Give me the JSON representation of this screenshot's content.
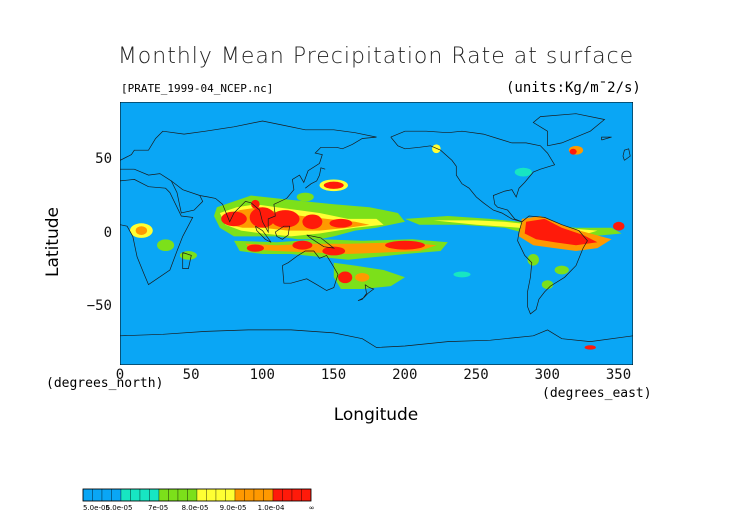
{
  "title": "Monthly Mean Precipitation Rate at surface",
  "file_label": "[PRATE_1999-04_NCEP.nc]",
  "units_label": "(units:Kg/m¯2/s)",
  "axes": {
    "x": {
      "label": "Longitude",
      "units": "(degrees_east)",
      "ticks": [
        "0",
        "50",
        "100",
        "150",
        "200",
        "250",
        "300",
        "350"
      ],
      "range": [
        0,
        360
      ]
    },
    "y": {
      "label": "Latitude",
      "units": "(degrees_north)",
      "ticks": [
        "50",
        "0",
        "−50"
      ],
      "range": [
        -90,
        90
      ]
    }
  },
  "colorbar": {
    "labels": [
      "5.0e-05",
      "6.0e-05",
      "7e-05",
      "8.0e-05",
      "9.0e-05",
      "1.0e-04",
      "∞"
    ],
    "colors": [
      "#0aa6f5",
      "#17e6c2",
      "#7ce01a",
      "#ffff33",
      "#ff9900",
      "#ff1a0a"
    ],
    "bands": [
      {
        "color": "#0aa6f5",
        "count": 4
      },
      {
        "color": "#17e6c2",
        "count": 4
      },
      {
        "color": "#7ce01a",
        "count": 4
      },
      {
        "color": "#ffff33",
        "count": 4
      },
      {
        "color": "#ff9900",
        "count": 4
      },
      {
        "color": "#ff1a0a",
        "count": 4
      }
    ]
  },
  "map_colors": {
    "background": "#0aa6f5",
    "cyan": "#17e6c2",
    "green": "#7ce01a",
    "yellow": "#ffff33",
    "orange": "#ff9900",
    "red": "#ff1a0a",
    "coast": "#1a1a1a"
  }
}
